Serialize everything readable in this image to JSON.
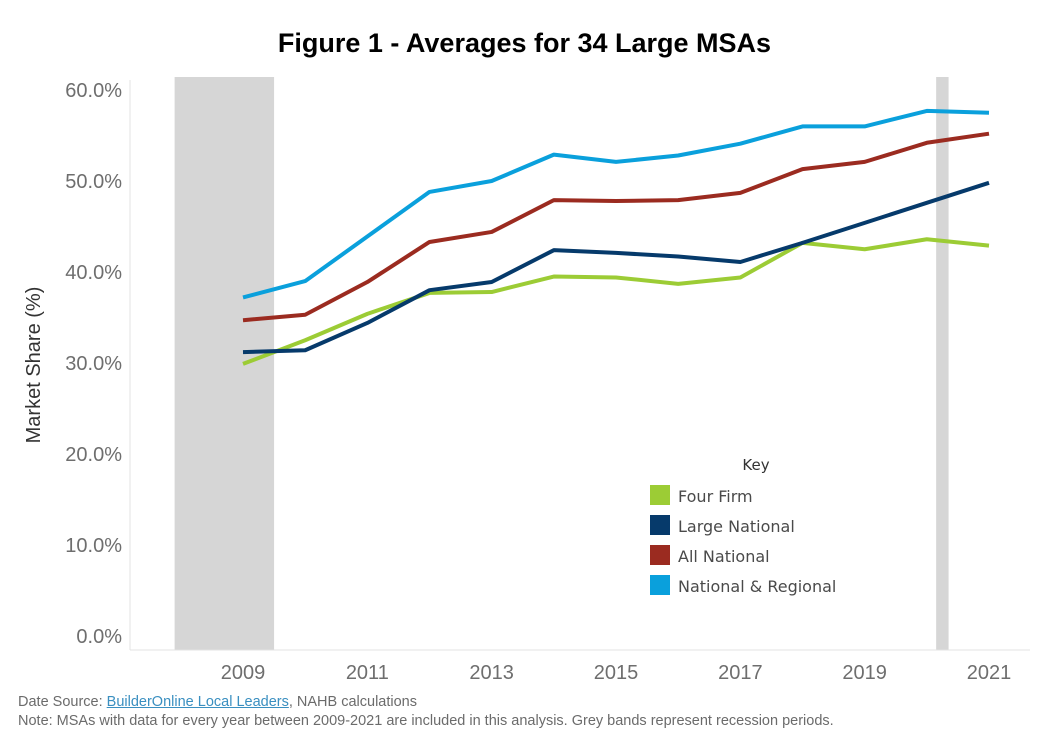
{
  "chart_data": {
    "type": "line",
    "title": "Figure 1 - Averages for 34 Large MSAs",
    "ylabel": "Market Share (%)",
    "xlabel": "",
    "x": [
      2009,
      2010,
      2011,
      2012,
      2013,
      2014,
      2015,
      2016,
      2017,
      2018,
      2019,
      2020,
      2021
    ],
    "x_ticks": [
      "2009",
      "2011",
      "2013",
      "2015",
      "2017",
      "2019",
      "2021"
    ],
    "y_ticks": [
      "0.0%",
      "10.0%",
      "20.0%",
      "30.0%",
      "40.0%",
      "50.0%",
      "60.0%"
    ],
    "ylim": [
      0,
      60
    ],
    "grid": false,
    "legend_title": "Key",
    "legend_position": "bottom-right",
    "recession_bands": [
      {
        "start": 2007.9,
        "end": 2009.5
      },
      {
        "start": 2020.15,
        "end": 2020.35
      }
    ],
    "series": [
      {
        "name": "Four Firm",
        "color": "#9ccc35",
        "values": [
          29.9,
          32.5,
          35.4,
          37.7,
          37.8,
          39.5,
          39.4,
          38.7,
          39.4,
          43.2,
          42.5,
          43.6,
          42.9
        ]
      },
      {
        "name": "Large National",
        "color": "#063a6b",
        "values": [
          31.2,
          31.4,
          34.4,
          38.0,
          38.9,
          42.4,
          42.1,
          41.7,
          41.1,
          43.2,
          45.4,
          47.6,
          49.8
        ]
      },
      {
        "name": "All National",
        "color": "#9b2b20",
        "values": [
          34.7,
          35.3,
          38.9,
          43.3,
          44.4,
          47.9,
          47.8,
          47.9,
          48.7,
          51.3,
          52.1,
          54.2,
          55.2
        ]
      },
      {
        "name": "National & Regional",
        "color": "#0aa0dc",
        "values": [
          37.2,
          39.0,
          43.9,
          48.8,
          50.0,
          52.9,
          52.1,
          52.8,
          54.1,
          56.0,
          56.0,
          57.7,
          57.5
        ]
      }
    ]
  },
  "footnotes": {
    "source_prefix": "Date Source: ",
    "source_link": "BuilderOnline Local Leaders",
    "source_suffix": ", NAHB calculations",
    "note": "Note: MSAs with data for every year between 2009-2021 are included in this analysis. Grey bands represent recession periods."
  }
}
